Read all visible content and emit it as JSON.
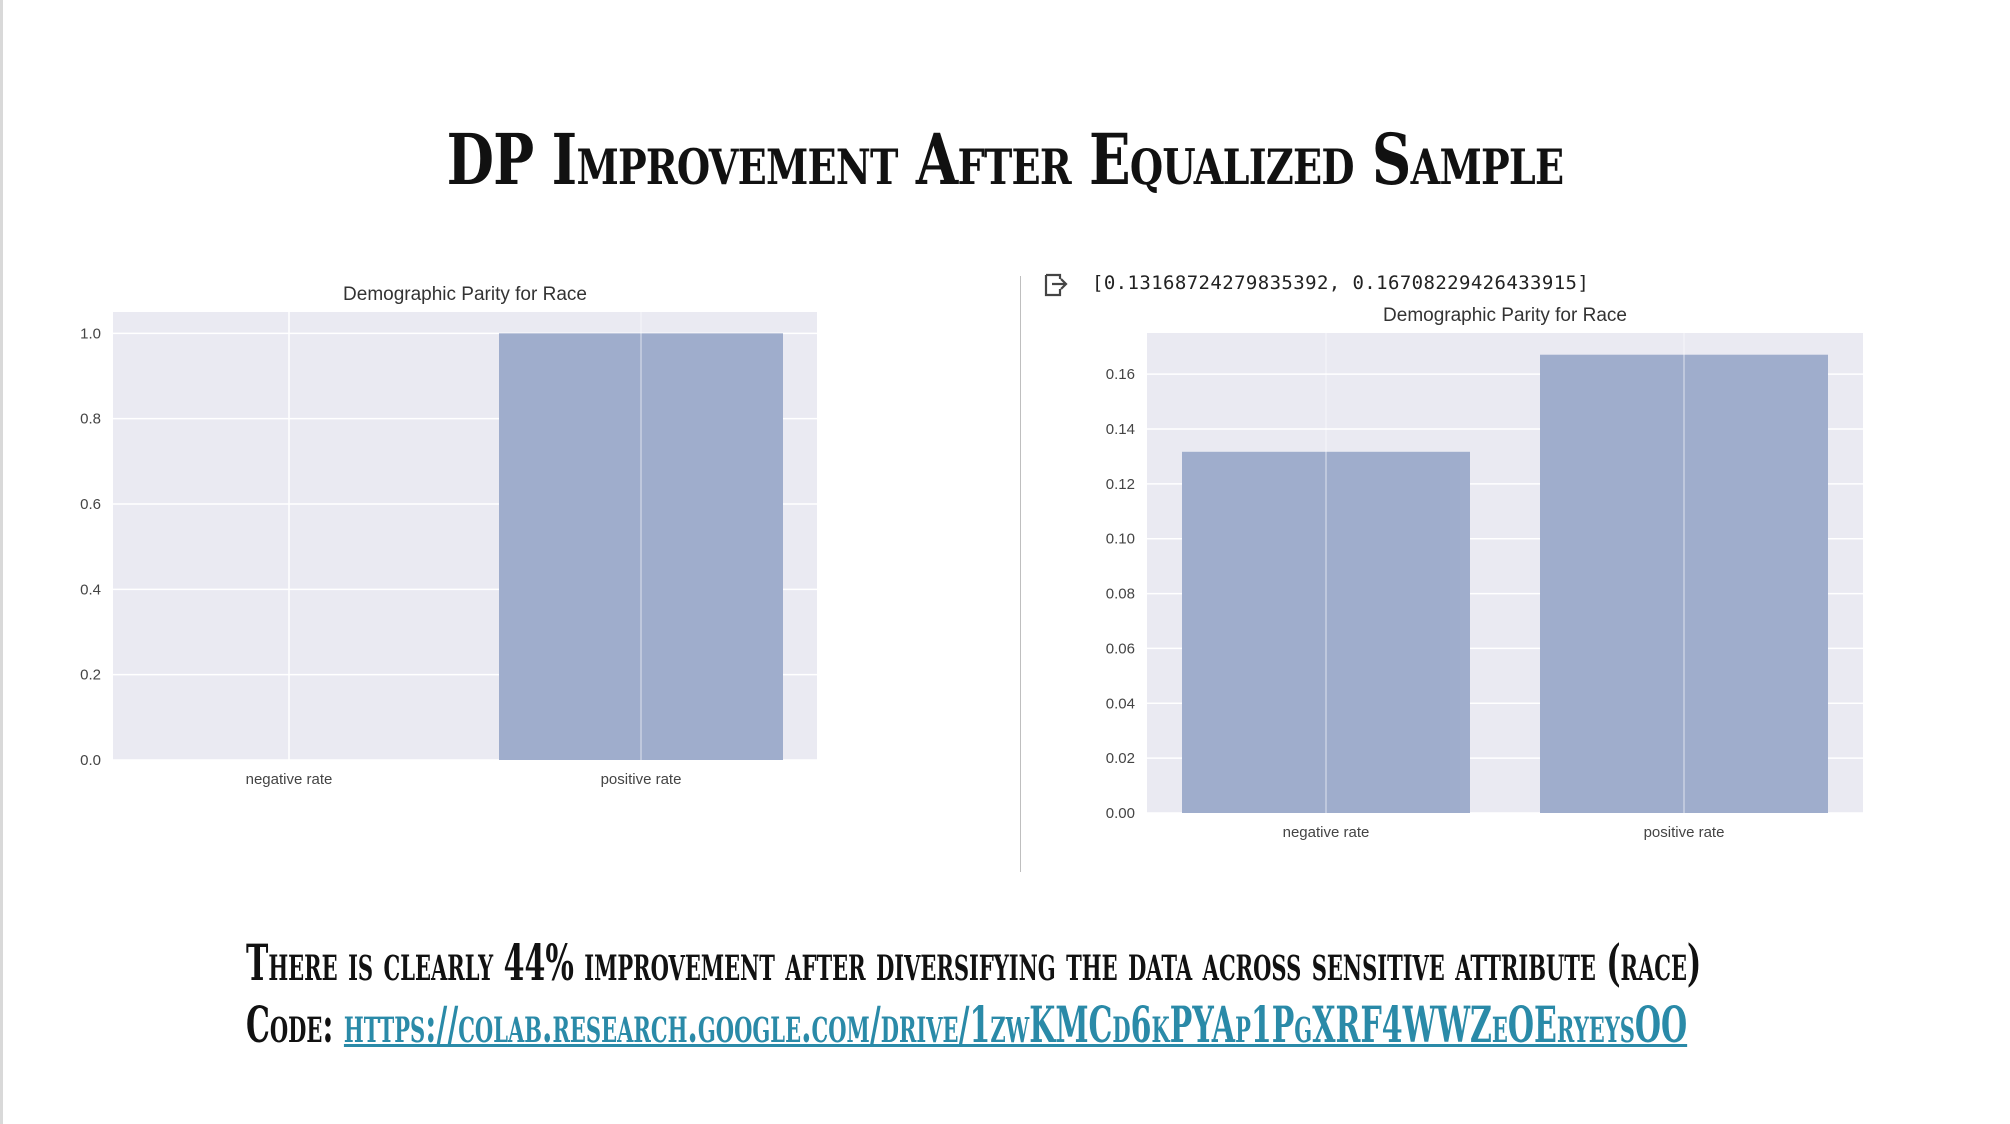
{
  "slide": {
    "title": "DP Improvement After Equalized Sample",
    "footer_text": "There is clearly 44% improvement after diversifying the data across sensitive attribute (race)",
    "code_label": "Code:",
    "code_link": "https://colab.research.google.com/drive/1zwKMCd6kPYAp1PgXRF4WWZeOEryeysOO",
    "output_value": "[0.13168724279835392, 0.16708229426433915]"
  },
  "colors": {
    "bar": "#9fadcc",
    "plot_bg": "#eaeaf2",
    "grid": "#ffffff",
    "link": "#2a8aa8"
  },
  "chart_data": [
    {
      "type": "bar",
      "title": "Demographic Parity for Race",
      "categories": [
        "negative rate",
        "positive rate"
      ],
      "values": [
        0.0,
        1.0
      ],
      "ylim": [
        0,
        1.05
      ],
      "yticks": [
        "0.0",
        "0.2",
        "0.4",
        "0.6",
        "0.8",
        "1.0"
      ],
      "ytick_values": [
        0,
        0.2,
        0.4,
        0.6,
        0.8,
        1.0
      ],
      "grid": true
    },
    {
      "type": "bar",
      "title": "Demographic Parity for Race",
      "categories": [
        "negative rate",
        "positive rate"
      ],
      "values": [
        0.13168724279835392,
        0.16708229426433915
      ],
      "ylim": [
        0,
        0.175
      ],
      "yticks": [
        "0.00",
        "0.02",
        "0.04",
        "0.06",
        "0.08",
        "0.10",
        "0.12",
        "0.14",
        "0.16"
      ],
      "ytick_values": [
        0,
        0.02,
        0.04,
        0.06,
        0.08,
        0.1,
        0.12,
        0.14,
        0.16
      ],
      "grid": true
    }
  ]
}
